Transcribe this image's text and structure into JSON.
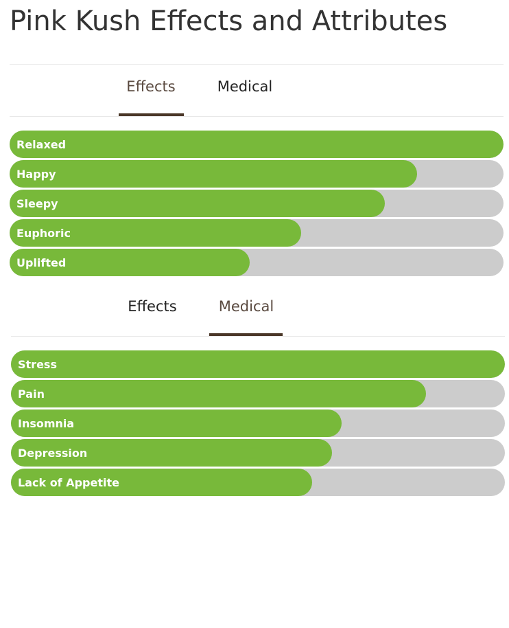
{
  "title": "Pink Kush Effects and Attributes",
  "panels": [
    {
      "tabs": [
        "Effects",
        "Medical"
      ],
      "active_tab": 0,
      "bars": [
        {
          "label": "Relaxed",
          "value": 100
        },
        {
          "label": "Happy",
          "value": 82.5
        },
        {
          "label": "Sleepy",
          "value": 76
        },
        {
          "label": "Euphoric",
          "value": 59
        },
        {
          "label": "Uplifted",
          "value": 48.6
        }
      ]
    },
    {
      "tabs": [
        "Effects",
        "Medical"
      ],
      "active_tab": 1,
      "bars": [
        {
          "label": "Stress",
          "value": 100
        },
        {
          "label": "Pain",
          "value": 84
        },
        {
          "label": "Insomnia",
          "value": 67
        },
        {
          "label": "Depression",
          "value": 65
        },
        {
          "label": "Lack of Appetite",
          "value": 61
        }
      ]
    }
  ],
  "bar_color": "#78b93a",
  "track_color": "#cccccc"
}
